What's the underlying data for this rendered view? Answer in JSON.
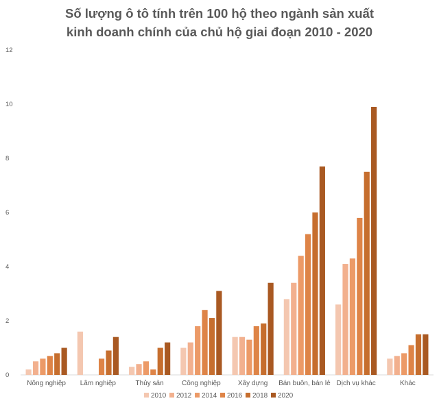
{
  "chart_data": {
    "type": "bar",
    "title_line1": "Số lượng ô tô tính trên 100 hộ theo ngành sản xuất",
    "title_line2": "kinh doanh chính của chủ hộ giai đoạn 2010 - 2020",
    "xlabel": "",
    "ylabel": "",
    "ylim": [
      0,
      12
    ],
    "yticks": [
      0,
      2,
      4,
      6,
      8,
      10,
      12
    ],
    "grid": false,
    "legend_position": "bottom",
    "categories": [
      "Nông nghiệp",
      "Lâm nghiệp",
      "Thủy sản",
      "Công nghiệp",
      "Xây dựng",
      "Bán buôn, bán lẻ",
      "Dịch vụ khác",
      "Khác"
    ],
    "series": [
      {
        "name": "2010",
        "color": "#F4C7B0",
        "values": [
          0.2,
          1.6,
          0.3,
          1.0,
          1.4,
          2.8,
          2.6,
          0.6
        ]
      },
      {
        "name": "2012",
        "color": "#F2B08E",
        "values": [
          0.5,
          0,
          0.4,
          1.2,
          1.4,
          3.4,
          4.1,
          0.7
        ]
      },
      {
        "name": "2014",
        "color": "#EC9A67",
        "values": [
          0.6,
          0,
          0.5,
          1.8,
          1.3,
          4.4,
          4.3,
          0.8
        ]
      },
      {
        "name": "2016",
        "color": "#DE8447",
        "values": [
          0.7,
          0.6,
          0.2,
          2.4,
          1.8,
          5.2,
          5.8,
          1.1
        ]
      },
      {
        "name": "2018",
        "color": "#C66E2E",
        "values": [
          0.8,
          0.9,
          1.0,
          2.1,
          1.9,
          6.0,
          7.5,
          1.5
        ]
      },
      {
        "name": "2020",
        "color": "#A95922",
        "values": [
          1.0,
          1.4,
          1.2,
          3.1,
          3.4,
          7.7,
          9.9,
          1.5
        ]
      }
    ]
  }
}
